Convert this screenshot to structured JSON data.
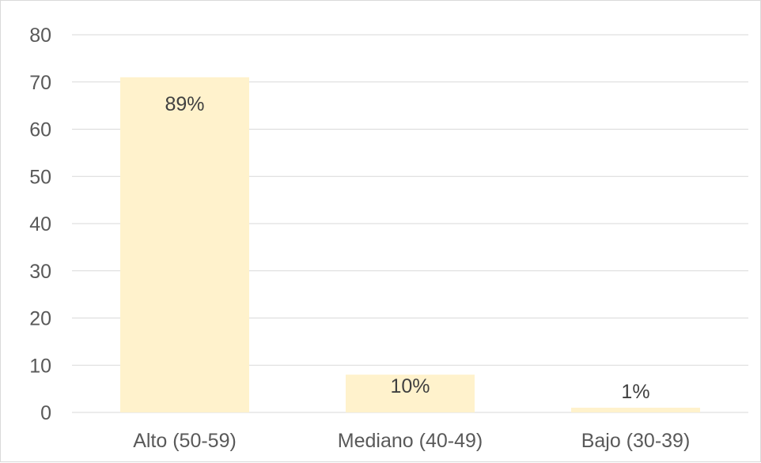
{
  "chart_data": {
    "type": "bar",
    "categories": [
      "Alto (50-59)",
      "Mediano (40-49)",
      "Bajo (30-39)"
    ],
    "values": [
      71,
      8,
      1
    ],
    "data_labels": [
      "89%",
      "10%",
      "1%"
    ],
    "title": "",
    "xlabel": "",
    "ylabel": "",
    "ylim": [
      0,
      80
    ],
    "yticks": [
      0,
      10,
      20,
      30,
      40,
      50,
      60,
      70,
      80
    ],
    "grid": true,
    "legend": "none",
    "bar_color": "#fff2cc",
    "grid_color": "#d9d9d9",
    "text_color": "#595959"
  }
}
